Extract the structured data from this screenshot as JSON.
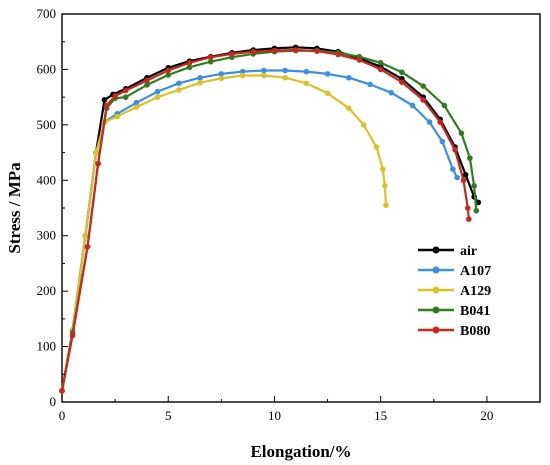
{
  "chart_data": {
    "type": "line",
    "xlabel": "Elongation/%",
    "ylabel": "Stress / MPa",
    "xlim": [
      0,
      22.5
    ],
    "ylim": [
      0,
      700
    ],
    "xticks": [
      0,
      5,
      10,
      15,
      20
    ],
    "yticks": [
      0,
      100,
      200,
      300,
      400,
      500,
      600,
      700
    ],
    "grid": false,
    "legend_position": "bottom-right",
    "series": [
      {
        "name": "air",
        "color": "#000000",
        "points": [
          [
            0,
            20
          ],
          [
            0.5,
            130
          ],
          [
            1.1,
            300
          ],
          [
            1.6,
            450
          ],
          [
            2.0,
            545
          ],
          [
            2.4,
            555
          ],
          [
            3.0,
            565
          ],
          [
            4.0,
            585
          ],
          [
            5.0,
            603
          ],
          [
            6.0,
            615
          ],
          [
            7.0,
            623
          ],
          [
            8.0,
            630
          ],
          [
            9.0,
            635
          ],
          [
            10.0,
            638
          ],
          [
            11.0,
            640
          ],
          [
            12.0,
            638
          ],
          [
            13.0,
            632
          ],
          [
            14.0,
            620
          ],
          [
            15.0,
            605
          ],
          [
            16.0,
            583
          ],
          [
            17.0,
            550
          ],
          [
            17.8,
            510
          ],
          [
            18.5,
            460
          ],
          [
            19.0,
            410
          ],
          [
            19.4,
            370
          ],
          [
            19.6,
            360
          ]
        ]
      },
      {
        "name": "A107",
        "color": "#3d8fe0",
        "points": [
          [
            0,
            20
          ],
          [
            0.5,
            130
          ],
          [
            1.1,
            300
          ],
          [
            1.6,
            450
          ],
          [
            2.0,
            505
          ],
          [
            2.6,
            520
          ],
          [
            3.5,
            540
          ],
          [
            4.5,
            560
          ],
          [
            5.5,
            575
          ],
          [
            6.5,
            585
          ],
          [
            7.5,
            592
          ],
          [
            8.5,
            596
          ],
          [
            9.5,
            598
          ],
          [
            10.5,
            598
          ],
          [
            11.5,
            596
          ],
          [
            12.5,
            592
          ],
          [
            13.5,
            585
          ],
          [
            14.5,
            573
          ],
          [
            15.5,
            558
          ],
          [
            16.5,
            535
          ],
          [
            17.3,
            505
          ],
          [
            17.9,
            470
          ],
          [
            18.4,
            420
          ],
          [
            18.6,
            405
          ]
        ]
      },
      {
        "name": "A129",
        "color": "#d9c12a",
        "points": [
          [
            0,
            20
          ],
          [
            0.5,
            130
          ],
          [
            1.1,
            300
          ],
          [
            1.6,
            450
          ],
          [
            2.0,
            505
          ],
          [
            2.6,
            515
          ],
          [
            3.5,
            532
          ],
          [
            4.5,
            550
          ],
          [
            5.5,
            563
          ],
          [
            6.5,
            576
          ],
          [
            7.5,
            584
          ],
          [
            8.5,
            589
          ],
          [
            9.5,
            589
          ],
          [
            10.5,
            585
          ],
          [
            11.5,
            575
          ],
          [
            12.5,
            557
          ],
          [
            13.5,
            530
          ],
          [
            14.2,
            500
          ],
          [
            14.8,
            460
          ],
          [
            15.1,
            420
          ],
          [
            15.2,
            390
          ],
          [
            15.25,
            355
          ]
        ]
      },
      {
        "name": "B041",
        "color": "#2f7d1f",
        "points": [
          [
            0,
            20
          ],
          [
            0.5,
            125
          ],
          [
            1.2,
            280
          ],
          [
            1.7,
            430
          ],
          [
            2.1,
            530
          ],
          [
            2.5,
            548
          ],
          [
            3.0,
            550
          ],
          [
            4.0,
            572
          ],
          [
            5.0,
            590
          ],
          [
            6.0,
            604
          ],
          [
            7.0,
            614
          ],
          [
            8.0,
            622
          ],
          [
            9.0,
            628
          ],
          [
            10.0,
            632
          ],
          [
            11.0,
            634
          ],
          [
            12.0,
            634
          ],
          [
            13.0,
            630
          ],
          [
            14.0,
            623
          ],
          [
            15.0,
            612
          ],
          [
            16.0,
            595
          ],
          [
            17.0,
            570
          ],
          [
            18.0,
            535
          ],
          [
            18.8,
            485
          ],
          [
            19.2,
            440
          ],
          [
            19.4,
            390
          ],
          [
            19.5,
            345
          ]
        ]
      },
      {
        "name": "B080",
        "color": "#c8281e",
        "points": [
          [
            0,
            20
          ],
          [
            0.5,
            120
          ],
          [
            1.2,
            280
          ],
          [
            1.7,
            430
          ],
          [
            2.1,
            535
          ],
          [
            2.5,
            552
          ],
          [
            3.0,
            562
          ],
          [
            4.0,
            580
          ],
          [
            5.0,
            598
          ],
          [
            6.0,
            612
          ],
          [
            7.0,
            622
          ],
          [
            8.0,
            628
          ],
          [
            9.0,
            632
          ],
          [
            10.0,
            634
          ],
          [
            11.0,
            635
          ],
          [
            12.0,
            633
          ],
          [
            13.0,
            627
          ],
          [
            14.0,
            617
          ],
          [
            15.0,
            600
          ],
          [
            16.0,
            577
          ],
          [
            17.0,
            545
          ],
          [
            17.8,
            505
          ],
          [
            18.5,
            455
          ],
          [
            18.9,
            400
          ],
          [
            19.1,
            350
          ],
          [
            19.15,
            330
          ]
        ]
      }
    ]
  }
}
